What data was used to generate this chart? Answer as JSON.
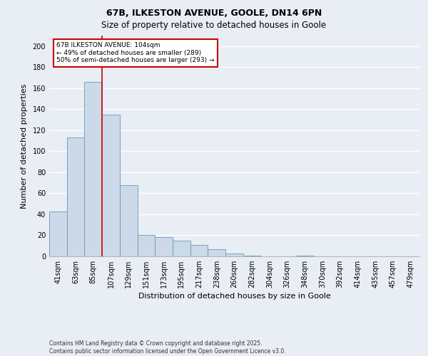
{
  "title1": "67B, ILKESTON AVENUE, GOOLE, DN14 6PN",
  "title2": "Size of property relative to detached houses in Goole",
  "xlabel": "Distribution of detached houses by size in Goole",
  "ylabel": "Number of detached properties",
  "categories": [
    "41sqm",
    "63sqm",
    "85sqm",
    "107sqm",
    "129sqm",
    "151sqm",
    "173sqm",
    "195sqm",
    "217sqm",
    "238sqm",
    "260sqm",
    "282sqm",
    "304sqm",
    "326sqm",
    "348sqm",
    "370sqm",
    "392sqm",
    "414sqm",
    "435sqm",
    "457sqm",
    "479sqm"
  ],
  "values": [
    43,
    113,
    166,
    135,
    68,
    20,
    18,
    15,
    11,
    7,
    3,
    1,
    0,
    0,
    1,
    0,
    0,
    0,
    0,
    0,
    0
  ],
  "bar_color": "#ccd9e8",
  "bar_edge_color": "#6699bb",
  "vline_color": "#cc0000",
  "annotation_line1": "67B ILKESTON AVENUE: 104sqm",
  "annotation_line2": "← 49% of detached houses are smaller (289)",
  "annotation_line3": "50% of semi-detached houses are larger (293) →",
  "annotation_box_facecolor": "white",
  "annotation_box_edgecolor": "#cc0000",
  "footer": "Contains HM Land Registry data © Crown copyright and database right 2025.\nContains public sector information licensed under the Open Government Licence v3.0.",
  "ylim": [
    0,
    210
  ],
  "yticks": [
    0,
    20,
    40,
    60,
    80,
    100,
    120,
    140,
    160,
    180,
    200
  ],
  "bg_color": "#e8eef4",
  "grid_color": "#ffffff",
  "title1_fontsize": 9,
  "title2_fontsize": 8.5,
  "xlabel_fontsize": 8,
  "ylabel_fontsize": 8,
  "tick_fontsize": 7,
  "footer_fontsize": 5.5
}
